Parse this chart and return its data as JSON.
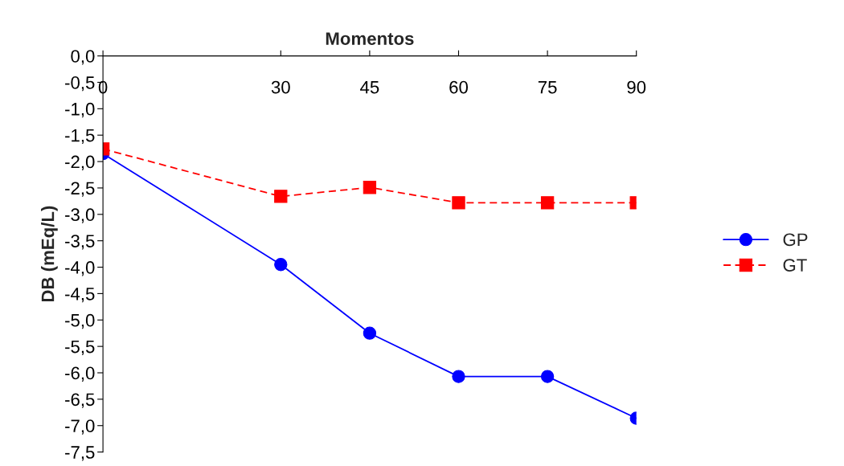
{
  "chart_data": {
    "type": "line",
    "xlabel": "Momentos",
    "ylabel": "DB (mEq/L)",
    "x": [
      0,
      30,
      45,
      60,
      75,
      90
    ],
    "xlim": [
      0,
      90
    ],
    "xticks": [
      0,
      30,
      45,
      60,
      75,
      90
    ],
    "ylim": [
      -7.5,
      0
    ],
    "yticks": [
      {
        "value": 0,
        "label": "0,0"
      },
      {
        "value": -0.5,
        "label": "-0,5"
      },
      {
        "value": -1,
        "label": "-1,0"
      },
      {
        "value": -1.5,
        "label": "-1,5"
      },
      {
        "value": -2,
        "label": "-2,0"
      },
      {
        "value": -2.5,
        "label": "-2,5"
      },
      {
        "value": -3,
        "label": "-3,0"
      },
      {
        "value": -3.5,
        "label": "-3,5"
      },
      {
        "value": -4,
        "label": "-4,0"
      },
      {
        "value": -4.5,
        "label": "-4,5"
      },
      {
        "value": -5,
        "label": "-5,0"
      },
      {
        "value": -5.5,
        "label": "-5,5"
      },
      {
        "value": -6,
        "label": "-6,0"
      },
      {
        "value": -6.5,
        "label": "-6,5"
      },
      {
        "value": -7,
        "label": "-7,0"
      },
      {
        "value": -7.5,
        "label": "-7,5"
      }
    ],
    "grid": false,
    "legend": "right",
    "series": [
      {
        "name": "GP",
        "color": "#0000ff",
        "marker": "circle",
        "line_style": "solid",
        "values": [
          -1.85,
          -3.95,
          -5.25,
          -6.07,
          -6.07,
          -6.86
        ]
      },
      {
        "name": "GT",
        "color": "#ff0000",
        "marker": "square",
        "line_style": "dashed",
        "values": [
          -1.76,
          -2.66,
          -2.49,
          -2.78,
          -2.78,
          -2.78
        ]
      }
    ]
  }
}
